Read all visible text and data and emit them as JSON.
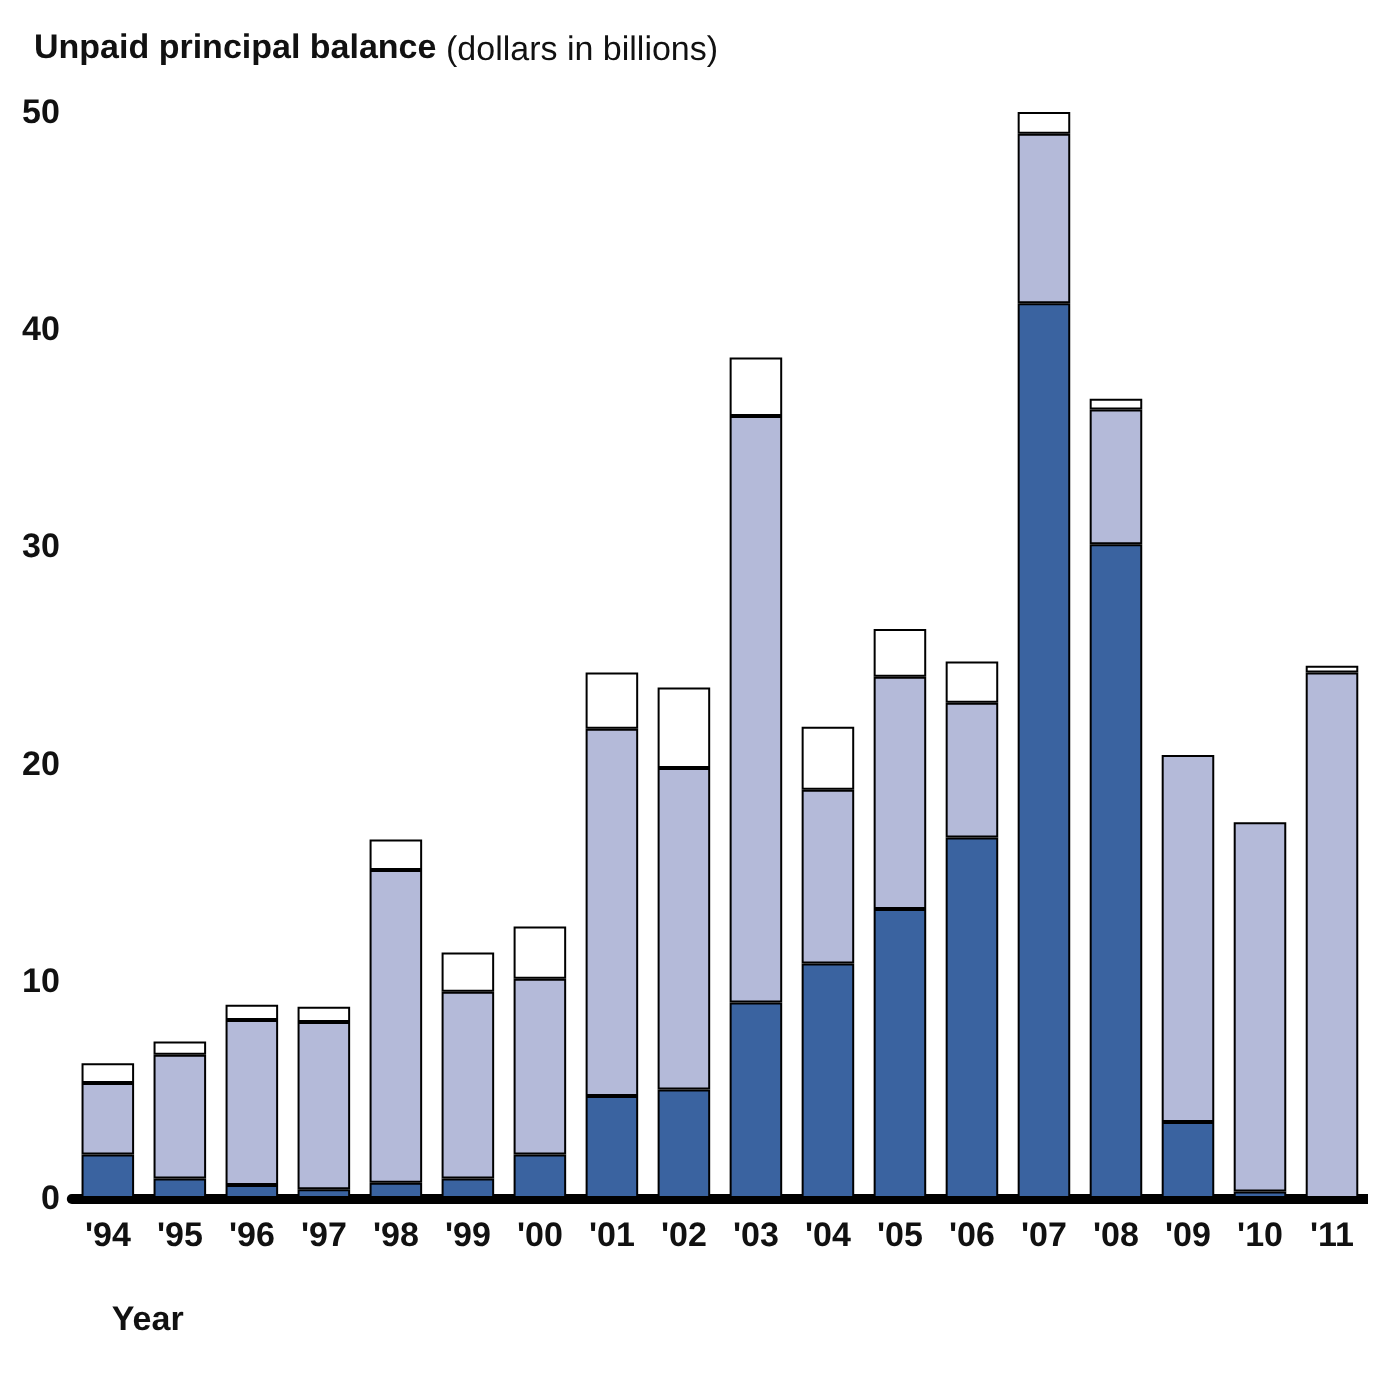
{
  "chart_data": {
    "type": "bar",
    "title": "Unpaid principal balance",
    "subtitle": "(dollars in billions)",
    "xlabel": "Year",
    "stacked": true,
    "grid": false,
    "categories": [
      "'94",
      "'95",
      "'96",
      "'97",
      "'98",
      "'99",
      "'00",
      "'01",
      "'02",
      "'03",
      "'04",
      "'05",
      "'06",
      "'07",
      "'08",
      "'09",
      "'10",
      "'11"
    ],
    "series": [
      {
        "color": "#3a63a0",
        "values": [
          2.0,
          0.9,
          0.6,
          0.4,
          0.7,
          0.9,
          2.0,
          4.7,
          5.0,
          9.0,
          10.8,
          13.3,
          16.6,
          41.2,
          30.1,
          3.5,
          0.3,
          0
        ]
      },
      {
        "color": "#b4bad9",
        "values": [
          3.3,
          5.7,
          7.6,
          7.7,
          14.4,
          8.6,
          8.1,
          16.9,
          14.8,
          27.0,
          8.0,
          10.7,
          6.2,
          7.8,
          6.2,
          16.9,
          17.0,
          24.2
        ]
      },
      {
        "color": "#ffffff",
        "values": [
          0.9,
          0.6,
          0.7,
          0.7,
          1.4,
          1.8,
          2.4,
          2.6,
          3.7,
          2.7,
          2.9,
          2.2,
          1.9,
          1.0,
          0.5,
          0,
          0,
          0.3
        ]
      }
    ],
    "ylim": [
      0,
      50
    ],
    "yticks": [
      0,
      10,
      20,
      30,
      40,
      50
    ]
  }
}
